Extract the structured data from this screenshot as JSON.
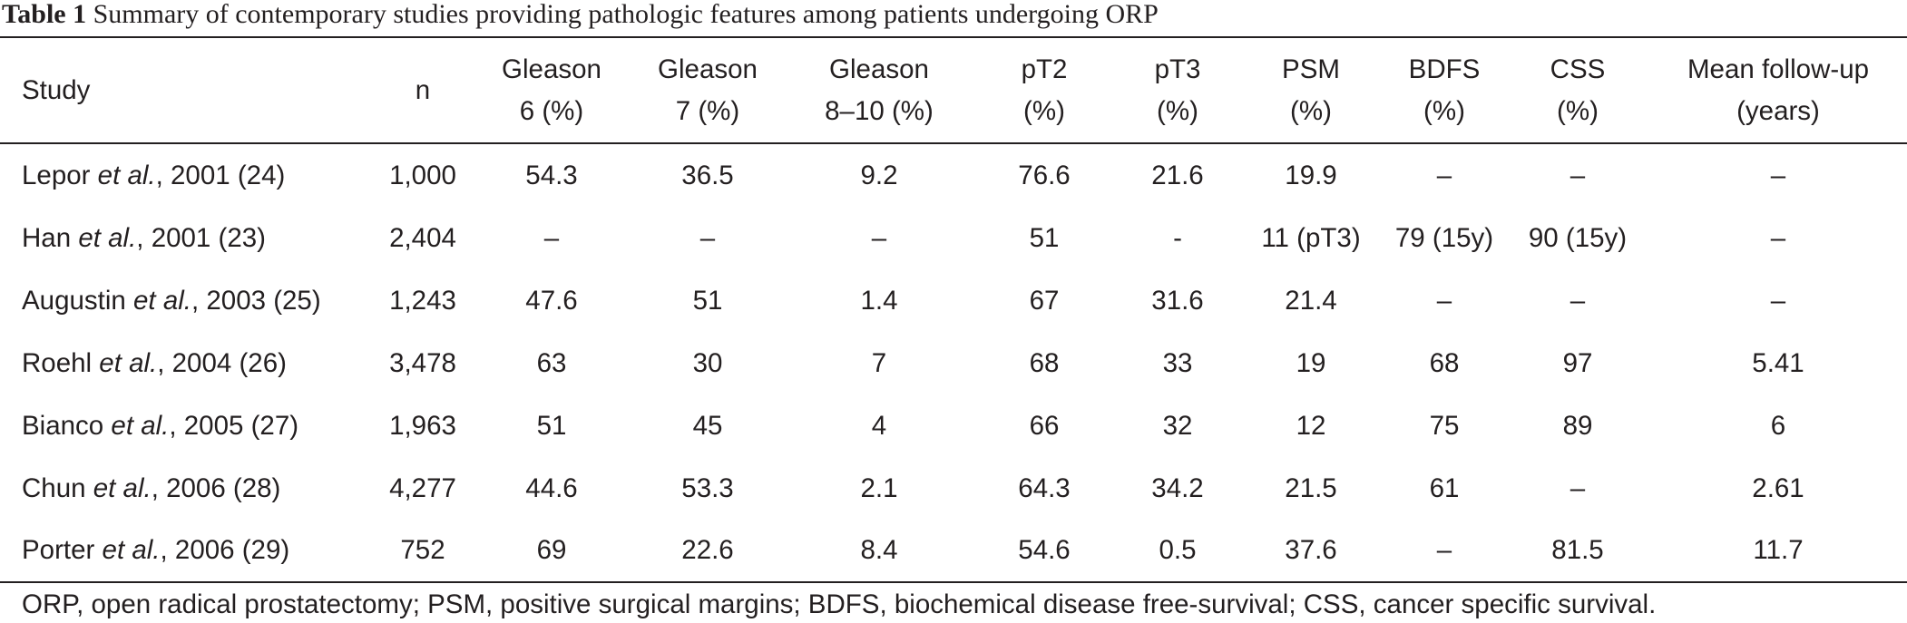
{
  "caption": {
    "label": "Table 1",
    "text": "Summary of contemporary studies providing pathologic features among patients undergoing ORP"
  },
  "columns": [
    {
      "line1": "Study",
      "line2": ""
    },
    {
      "line1": "n",
      "line2": ""
    },
    {
      "line1": "Gleason",
      "line2": "6 (%)"
    },
    {
      "line1": "Gleason",
      "line2": "7 (%)"
    },
    {
      "line1": "Gleason",
      "line2": "8–10 (%)"
    },
    {
      "line1": "pT2",
      "line2": "(%)"
    },
    {
      "line1": "pT3",
      "line2": "(%)"
    },
    {
      "line1": "PSM",
      "line2": "(%)"
    },
    {
      "line1": "BDFS",
      "line2": "(%)"
    },
    {
      "line1": "CSS",
      "line2": "(%)"
    },
    {
      "line1": "Mean follow-up",
      "line2": "(years)"
    }
  ],
  "rows": [
    {
      "author": "Lepor",
      "etal": "et al.",
      "rest": ", 2001 (24)",
      "cells": [
        "1,000",
        "54.3",
        "36.5",
        "9.2",
        "76.6",
        "21.6",
        "19.9",
        "–",
        "–",
        "–"
      ]
    },
    {
      "author": "Han",
      "etal": "et al.",
      "rest": ", 2001 (23)",
      "cells": [
        "2,404",
        "–",
        "–",
        "–",
        "51",
        "-",
        "11 (pT3)",
        "79 (15y)",
        "90 (15y)",
        "–"
      ]
    },
    {
      "author": "Augustin",
      "etal": "et al.",
      "rest": ", 2003 (25)",
      "cells": [
        "1,243",
        "47.6",
        "51",
        "1.4",
        "67",
        "31.6",
        "21.4",
        "–",
        "–",
        "–"
      ]
    },
    {
      "author": "Roehl",
      "etal": "et al.",
      "rest": ", 2004 (26)",
      "cells": [
        "3,478",
        "63",
        "30",
        "7",
        "68",
        "33",
        "19",
        "68",
        "97",
        "5.41"
      ]
    },
    {
      "author": "Bianco",
      "etal": "et al.",
      "rest": ", 2005 (27)",
      "cells": [
        "1,963",
        "51",
        "45",
        "4",
        "66",
        "32",
        "12",
        "75",
        "89",
        "6"
      ]
    },
    {
      "author": "Chun",
      "etal": "et al.",
      "rest": ", 2006 (28)",
      "cells": [
        "4,277",
        "44.6",
        "53.3",
        "2.1",
        "64.3",
        "34.2",
        "21.5",
        "61",
        "–",
        "2.61"
      ]
    },
    {
      "author": "Porter",
      "etal": "et al.",
      "rest": ", 2006 (29)",
      "cells": [
        "752",
        "69",
        "22.6",
        "8.4",
        "54.6",
        "0.5",
        "37.6",
        "–",
        "81.5",
        "11.7"
      ]
    }
  ],
  "footnote": "ORP, open radical prostatectomy; PSM, positive surgical margins; BDFS, biochemical disease free-survival; CSS, cancer specific survival."
}
